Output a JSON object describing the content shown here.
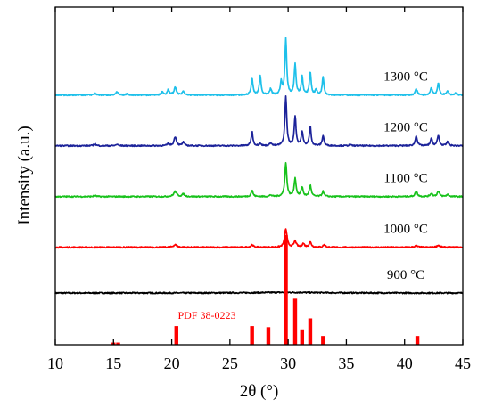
{
  "chart_data": {
    "type": "line",
    "xlabel": "2θ (°)",
    "ylabel": "Intensity (a.u.)",
    "xlim": [
      10,
      45
    ],
    "xticks": [
      10,
      15,
      20,
      25,
      30,
      35,
      40,
      45
    ],
    "x_tick_labels": [
      "10",
      "15",
      "20",
      "25",
      "30",
      "35",
      "40",
      "45"
    ],
    "y_tick_labels_shown": false,
    "grid": false,
    "legend": "none",
    "series": [
      {
        "name": "900 °C",
        "color": "#000000",
        "baseline": 0.1,
        "peaks": [
          {
            "x": 29.9,
            "h": 0.012,
            "w": 3.2
          }
        ]
      },
      {
        "name": "1000 °C",
        "color": "#ff0000",
        "baseline": 1.0,
        "peaks": [
          {
            "x": 20.3,
            "h": 0.05,
            "w": 0.18
          },
          {
            "x": 26.9,
            "h": 0.05,
            "w": 0.12
          },
          {
            "x": 29.8,
            "h": 0.36,
            "w": 0.12
          },
          {
            "x": 30.6,
            "h": 0.12,
            "w": 0.12
          },
          {
            "x": 31.3,
            "h": 0.07,
            "w": 0.12
          },
          {
            "x": 31.9,
            "h": 0.1,
            "w": 0.12
          },
          {
            "x": 33.1,
            "h": 0.05,
            "w": 0.12
          },
          {
            "x": 41.0,
            "h": 0.03,
            "w": 0.15
          },
          {
            "x": 42.9,
            "h": 0.04,
            "w": 0.15
          }
        ]
      },
      {
        "name": "1100 °C",
        "color": "#18c21c",
        "baseline": 2.0,
        "peaks": [
          {
            "x": 13.4,
            "h": 0.02,
            "w": 0.12
          },
          {
            "x": 20.3,
            "h": 0.1,
            "w": 0.15
          },
          {
            "x": 21.0,
            "h": 0.05,
            "w": 0.12
          },
          {
            "x": 26.9,
            "h": 0.12,
            "w": 0.1
          },
          {
            "x": 28.5,
            "h": 0.03,
            "w": 0.1
          },
          {
            "x": 29.8,
            "h": 0.66,
            "w": 0.1
          },
          {
            "x": 30.6,
            "h": 0.35,
            "w": 0.1
          },
          {
            "x": 31.2,
            "h": 0.18,
            "w": 0.1
          },
          {
            "x": 31.9,
            "h": 0.22,
            "w": 0.1
          },
          {
            "x": 33.0,
            "h": 0.1,
            "w": 0.1
          },
          {
            "x": 41.0,
            "h": 0.1,
            "w": 0.12
          },
          {
            "x": 42.3,
            "h": 0.06,
            "w": 0.12
          },
          {
            "x": 42.9,
            "h": 0.1,
            "w": 0.12
          },
          {
            "x": 43.7,
            "h": 0.04,
            "w": 0.12
          }
        ]
      },
      {
        "name": "1200 °C",
        "color": "#1c239a",
        "baseline": 3.0,
        "peaks": [
          {
            "x": 13.4,
            "h": 0.04,
            "w": 0.1
          },
          {
            "x": 15.3,
            "h": 0.03,
            "w": 0.1
          },
          {
            "x": 19.7,
            "h": 0.04,
            "w": 0.1
          },
          {
            "x": 20.3,
            "h": 0.18,
            "w": 0.12
          },
          {
            "x": 21.0,
            "h": 0.07,
            "w": 0.1
          },
          {
            "x": 26.9,
            "h": 0.28,
            "w": 0.09
          },
          {
            "x": 27.6,
            "h": 0.05,
            "w": 0.09
          },
          {
            "x": 28.5,
            "h": 0.06,
            "w": 0.09
          },
          {
            "x": 29.8,
            "h": 0.98,
            "w": 0.09
          },
          {
            "x": 30.6,
            "h": 0.58,
            "w": 0.09
          },
          {
            "x": 31.2,
            "h": 0.28,
            "w": 0.09
          },
          {
            "x": 31.9,
            "h": 0.38,
            "w": 0.09
          },
          {
            "x": 33.0,
            "h": 0.2,
            "w": 0.09
          },
          {
            "x": 35.3,
            "h": 0.02,
            "w": 0.1
          },
          {
            "x": 41.0,
            "h": 0.2,
            "w": 0.1
          },
          {
            "x": 42.3,
            "h": 0.14,
            "w": 0.1
          },
          {
            "x": 42.9,
            "h": 0.2,
            "w": 0.1
          },
          {
            "x": 43.7,
            "h": 0.08,
            "w": 0.1
          }
        ]
      },
      {
        "name": "1300 °C",
        "color": "#1ec0ea",
        "baseline": 4.0,
        "peaks": [
          {
            "x": 13.4,
            "h": 0.04,
            "w": 0.1
          },
          {
            "x": 15.3,
            "h": 0.06,
            "w": 0.1
          },
          {
            "x": 16.2,
            "h": 0.03,
            "w": 0.1
          },
          {
            "x": 19.2,
            "h": 0.06,
            "w": 0.1
          },
          {
            "x": 19.7,
            "h": 0.1,
            "w": 0.1
          },
          {
            "x": 20.3,
            "h": 0.15,
            "w": 0.12
          },
          {
            "x": 21.0,
            "h": 0.08,
            "w": 0.1
          },
          {
            "x": 26.9,
            "h": 0.33,
            "w": 0.09
          },
          {
            "x": 27.6,
            "h": 0.38,
            "w": 0.09
          },
          {
            "x": 28.5,
            "h": 0.12,
            "w": 0.09
          },
          {
            "x": 29.4,
            "h": 0.25,
            "w": 0.09
          },
          {
            "x": 29.8,
            "h": 1.1,
            "w": 0.09
          },
          {
            "x": 30.6,
            "h": 0.6,
            "w": 0.09
          },
          {
            "x": 31.2,
            "h": 0.36,
            "w": 0.09
          },
          {
            "x": 31.9,
            "h": 0.45,
            "w": 0.09
          },
          {
            "x": 32.4,
            "h": 0.1,
            "w": 0.09
          },
          {
            "x": 33.0,
            "h": 0.35,
            "w": 0.09
          },
          {
            "x": 41.0,
            "h": 0.12,
            "w": 0.1
          },
          {
            "x": 42.3,
            "h": 0.14,
            "w": 0.1
          },
          {
            "x": 42.9,
            "h": 0.22,
            "w": 0.1
          },
          {
            "x": 43.7,
            "h": 0.08,
            "w": 0.1
          },
          {
            "x": 44.4,
            "h": 0.04,
            "w": 0.1
          }
        ]
      }
    ],
    "reference_pattern": {
      "name": "PDF 38-0223",
      "color": "#ff0000",
      "type": "stick",
      "x": [
        15.0,
        15.4,
        20.4,
        26.9,
        28.3,
        29.8,
        30.6,
        31.2,
        31.9,
        33.0,
        41.1
      ],
      "intensity": [
        2,
        2,
        17,
        17,
        16,
        100,
        42,
        14,
        24,
        8,
        8
      ]
    }
  }
}
